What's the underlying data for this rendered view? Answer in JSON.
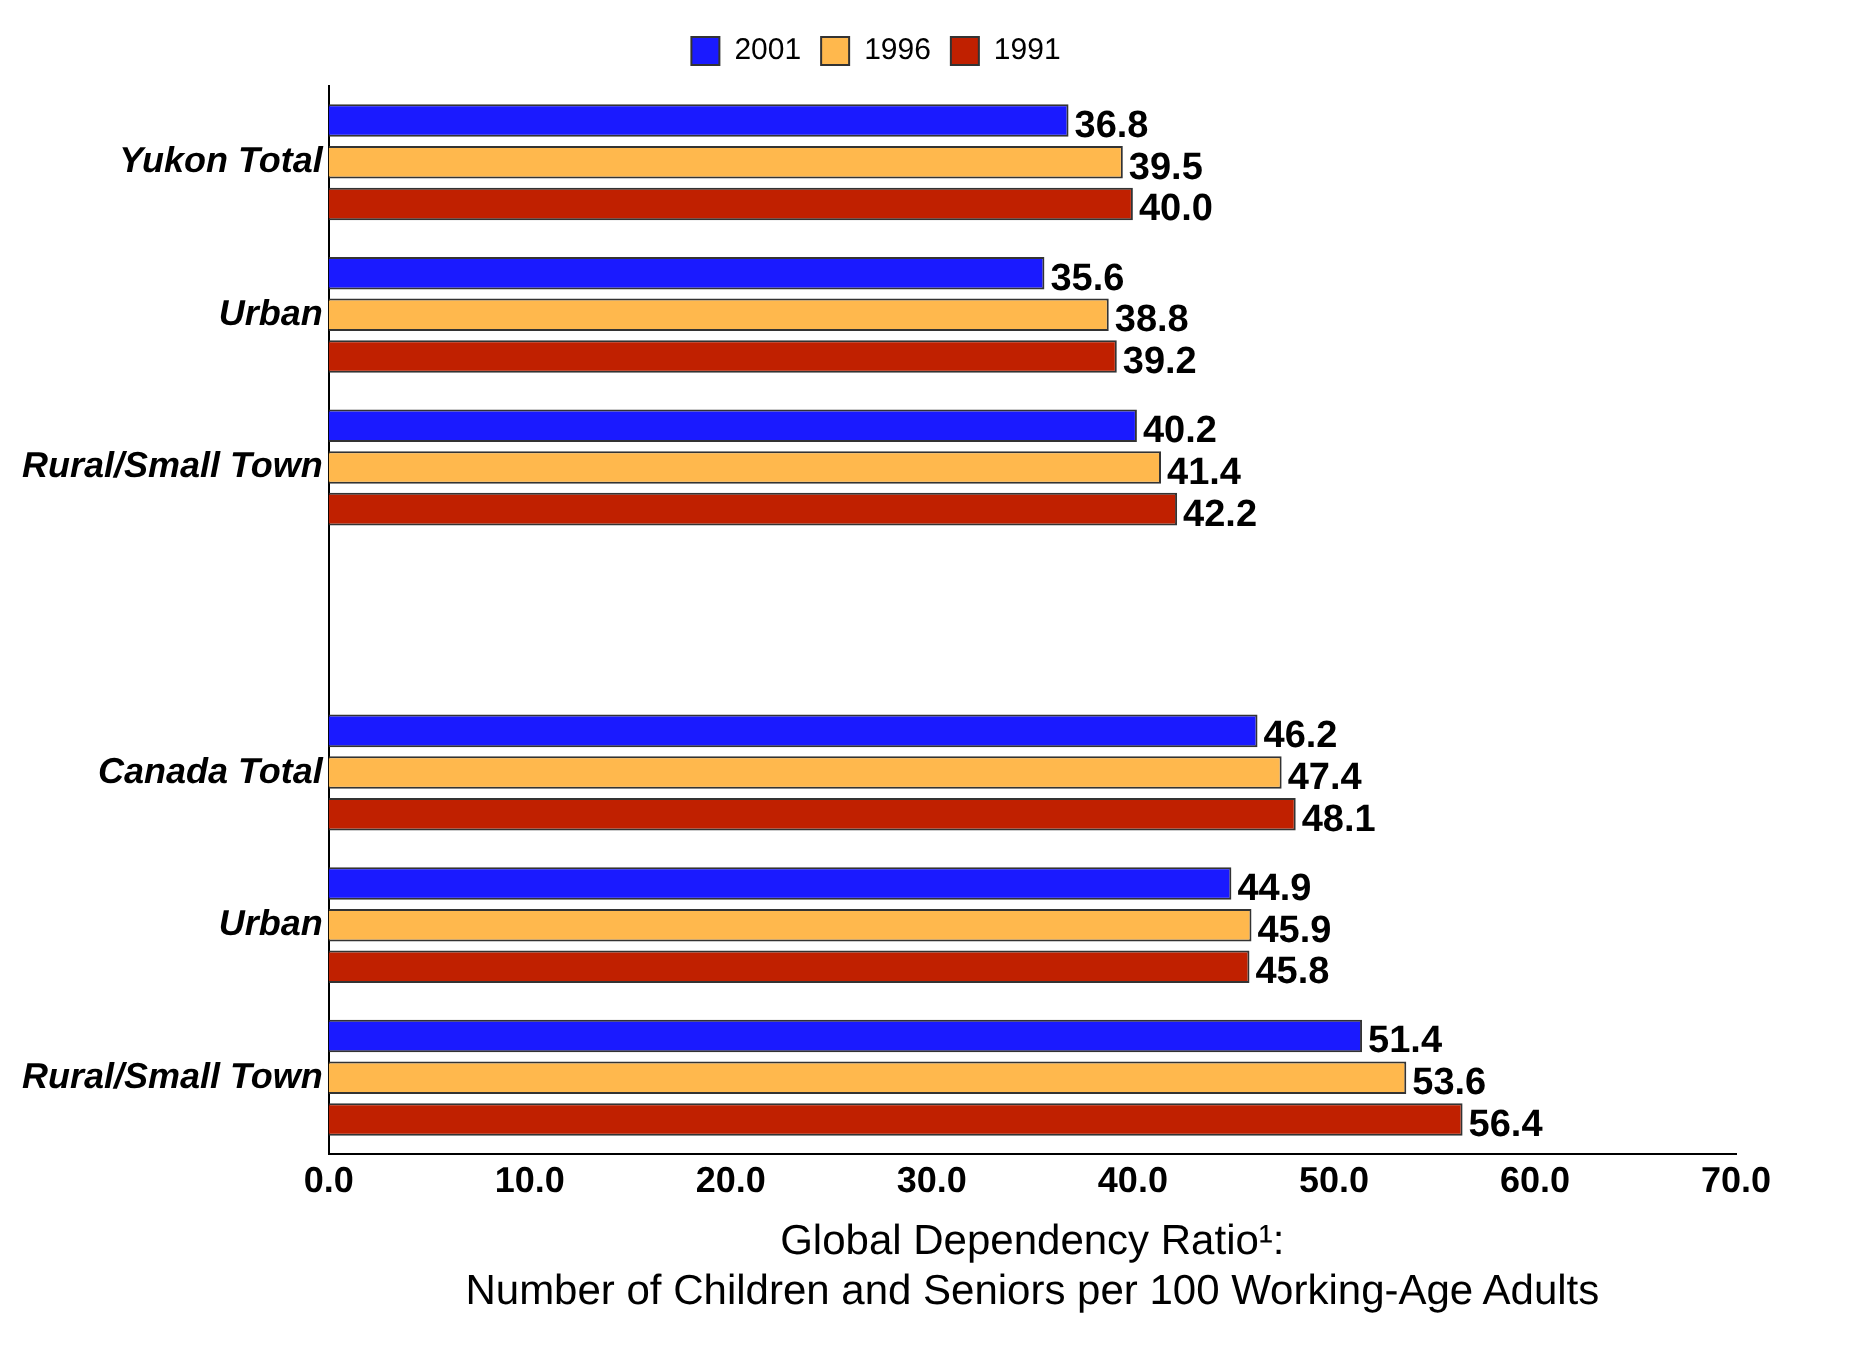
{
  "chart_data": {
    "type": "bar",
    "orientation": "horizontal",
    "xlabel": "Global Dependency Ratio¹:\nNumber of Children and Seniors per 100 Working-Age Adults",
    "categories": [
      "Yukon Total",
      "Urban",
      "Rural/Small Town",
      null,
      "Canada Total",
      "Urban",
      "Rural/Small Town"
    ],
    "series": [
      {
        "name": "2001",
        "color": "#1a1aff",
        "values": [
          36.8,
          35.6,
          40.2,
          null,
          46.2,
          44.9,
          51.4
        ],
        "value_labels": [
          "36.8",
          "35.6",
          "40.2",
          null,
          "46.2",
          "44.9",
          "51.4"
        ]
      },
      {
        "name": "1996",
        "color": "#ffb84d",
        "values": [
          39.5,
          38.8,
          41.4,
          null,
          47.4,
          45.9,
          53.6
        ],
        "value_labels": [
          "39.5",
          "38.8",
          "41.4",
          null,
          "47.4",
          "45.9",
          "53.6"
        ]
      },
      {
        "name": "1991",
        "color": "#c02000",
        "values": [
          40.0,
          39.2,
          42.2,
          null,
          48.1,
          45.8,
          56.4
        ],
        "value_labels": [
          "40.0",
          "39.2",
          "42.2",
          null,
          "48.1",
          "45.8",
          "56.4"
        ]
      }
    ],
    "xlim": [
      0,
      70
    ],
    "xticks": [
      {
        "value": 0,
        "label": "0.0"
      },
      {
        "value": 10,
        "label": "10.0"
      },
      {
        "value": 20,
        "label": "20.0"
      },
      {
        "value": 30,
        "label": "30.0"
      },
      {
        "value": 40,
        "label": "40.0"
      },
      {
        "value": 50,
        "label": "50.0"
      },
      {
        "value": 60,
        "label": "60.0"
      },
      {
        "value": 70,
        "label": "70.0"
      }
    ],
    "grid": false,
    "legend": "top"
  }
}
